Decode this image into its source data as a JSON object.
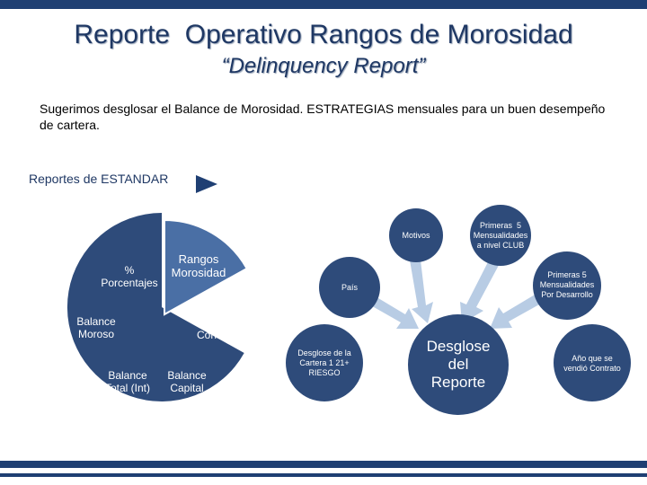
{
  "header": {
    "title": "Reporte  Operativo Rangos de Morosidad",
    "subtitle": "“Delinquency Report”"
  },
  "intro": "Sugerimos  desglosar el Balance de Morosidad.  ESTRATEGIAS mensuales para un buen desempeño de cartera.",
  "standard_reports_label": "Reportes de ESTANDAR",
  "pie": {
    "labels": [
      "%\nPorcentajes",
      "Balance\nMoroso",
      "Balance\nTotal (Int)",
      "Balance\nCapital",
      "No.\nContratos"
    ],
    "exploded_label": "Rangos\nMorosidad"
  },
  "radial": {
    "center": "Desglose\ndel\nReporte",
    "nodes": [
      "Motivos",
      "Primeras  5\nMensualidades\na nivel CLUB",
      "País",
      "Primeras 5\nMensualidades\nPor Desarrollo",
      "Desglose de la\nCartera 1 21+\nRIESGO",
      "Año que se\nvendió Contrato"
    ]
  },
  "colors": {
    "navy": "#1f3f73",
    "pie_fill": "#2e4b7a",
    "slice_fill": "#4a6fa5",
    "arrow_fill": "#b8cce4"
  }
}
